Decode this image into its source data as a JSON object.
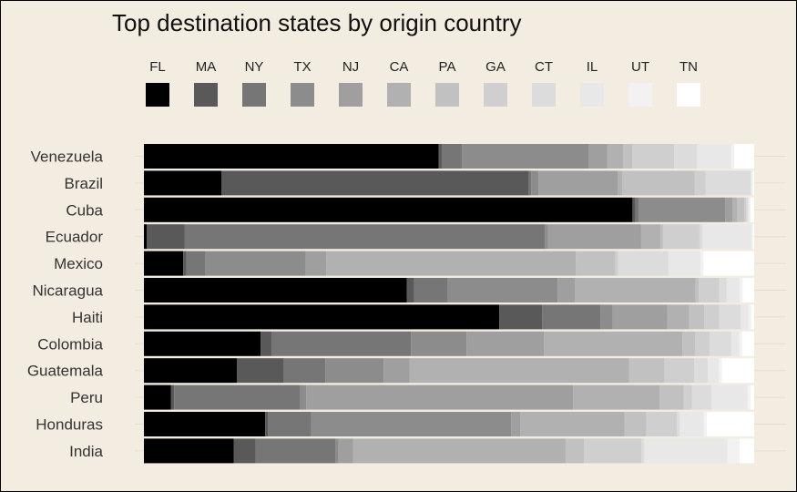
{
  "chart_data": {
    "type": "bar",
    "stacked": true,
    "normalized": true,
    "orientation": "horizontal",
    "title": "Top destination states by origin country",
    "legend_position": "top",
    "grid": true,
    "xlim": [
      0,
      1
    ],
    "categories": [
      "Venezuela",
      "Brazil",
      "Cuba",
      "Ecuador",
      "Mexico",
      "Nicaragua",
      "Haiti",
      "Colombia",
      "Guatemala",
      "Peru",
      "Honduras",
      "India"
    ],
    "series": [
      {
        "name": "FL",
        "color": "#000000",
        "values": [
          0.483,
          0.128,
          0.807,
          0.005,
          0.065,
          0.431,
          0.597,
          0.193,
          0.15,
          0.045,
          0.202,
          0.147
        ]
      },
      {
        "name": "MA",
        "color": "#595959",
        "values": [
          0.005,
          0.505,
          0.005,
          0.063,
          0.005,
          0.012,
          0.072,
          0.018,
          0.076,
          0.005,
          0.005,
          0.036
        ]
      },
      {
        "name": "NY",
        "color": "#767676",
        "values": [
          0.033,
          0.005,
          0.005,
          0.599,
          0.031,
          0.055,
          0.098,
          0.231,
          0.067,
          0.209,
          0.072,
          0.131
        ]
      },
      {
        "name": "TX",
        "color": "#8c8c8c",
        "values": [
          0.208,
          0.012,
          0.143,
          0.005,
          0.167,
          0.18,
          0.02,
          0.092,
          0.094,
          0.01,
          0.333,
          0.005
        ]
      },
      {
        "name": "NJ",
        "color": "#9f9f9f",
        "values": [
          0.03,
          0.13,
          0.012,
          0.155,
          0.034,
          0.028,
          0.092,
          0.128,
          0.042,
          0.442,
          0.015,
          0.024
        ]
      },
      {
        "name": "CA",
        "color": "#b1b1b1",
        "values": [
          0.026,
          0.008,
          0.008,
          0.032,
          0.413,
          0.198,
          0.037,
          0.229,
          0.354,
          0.143,
          0.174,
          0.348
        ]
      },
      {
        "name": "PA",
        "color": "#c1c1c1",
        "values": [
          0.015,
          0.119,
          0.012,
          0.005,
          0.065,
          0.005,
          0.025,
          0.021,
          0.057,
          0.04,
          0.036,
          0.03
        ]
      },
      {
        "name": "GA",
        "color": "#cfcfcf",
        "values": [
          0.069,
          0.018,
          0.003,
          0.06,
          0.005,
          0.034,
          0.025,
          0.024,
          0.048,
          0.014,
          0.051,
          0.094
        ]
      },
      {
        "name": "CT",
        "color": "#dcdcdc",
        "values": [
          0.037,
          0.074,
          0.003,
          0.005,
          0.083,
          0.012,
          0.036,
          0.036,
          0.022,
          0.032,
          0.005,
          0.005
        ]
      },
      {
        "name": "IL",
        "color": "#e8e8e8",
        "values": [
          0.056,
          0.002,
          0.002,
          0.082,
          0.053,
          0.021,
          0.013,
          0.013,
          0.018,
          0.06,
          0.04,
          0.136
        ]
      },
      {
        "name": "UT",
        "color": "#f2f2f2",
        "values": [
          0.005,
          0.002,
          0.002,
          0.002,
          0.005,
          0.005,
          0.005,
          0.005,
          0.005,
          0.005,
          0.005,
          0.02
        ]
      },
      {
        "name": "TN",
        "color": "#ffffff",
        "values": [
          0.033,
          0.002,
          0.006,
          0.002,
          0.084,
          0.019,
          0.005,
          0.02,
          0.052,
          0.006,
          0.079,
          0.024
        ]
      }
    ]
  }
}
